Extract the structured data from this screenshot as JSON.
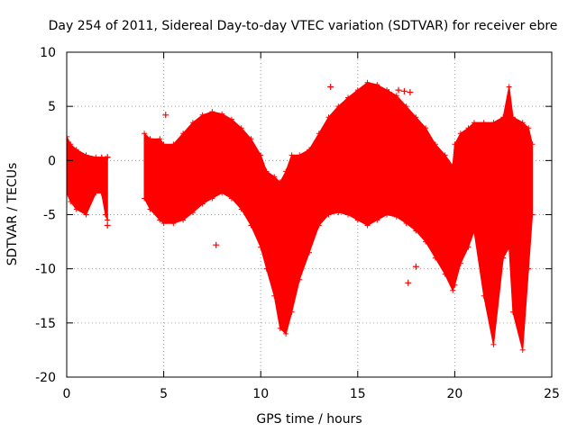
{
  "chart_data": {
    "type": "scatter",
    "title": "Day 254 of 2011, Sidereal Day-to-day VTEC variation (SDTVAR) for receiver ebre",
    "xlabel": "GPS time / hours",
    "ylabel": "SDTVAR / TECUs",
    "xlim": [
      0,
      25
    ],
    "ylim": [
      -20,
      10
    ],
    "xticks": [
      0,
      5,
      10,
      15,
      20,
      25
    ],
    "yticks": [
      -20,
      -15,
      -10,
      -5,
      0,
      5,
      10
    ],
    "grid": true,
    "series_color": "#ff0000",
    "envelope": {
      "segments": [
        {
          "x": [
            0.0,
            0.2,
            0.5,
            1.0,
            1.5,
            1.8
          ],
          "upper": [
            2.2,
            1.5,
            1.0,
            0.5,
            0.3,
            0.3
          ],
          "lower": [
            -3.0,
            -3.8,
            -4.5,
            -5.0,
            -3.0,
            -3.0
          ]
        },
        {
          "x": [
            1.8,
            2.0,
            2.1
          ],
          "upper": [
            0.3,
            0.2,
            0.3
          ],
          "lower": [
            -3.0,
            -5.0,
            -5.5
          ]
        },
        {
          "x": [
            4.0,
            4.3,
            4.8,
            5.0,
            5.5,
            6.0,
            6.5,
            7.0,
            7.5,
            8.0,
            8.5,
            9.0,
            9.5,
            10.0,
            10.3,
            10.7,
            11.0,
            11.3,
            11.6,
            12.0,
            12.5,
            13.0,
            13.5,
            14.0,
            14.5,
            15.0,
            15.5,
            16.0,
            16.5,
            17.0,
            17.5,
            18.0,
            18.5,
            19.0,
            19.5,
            19.9,
            20.0,
            20.3,
            20.7,
            21.0,
            21.5,
            22.0,
            22.5,
            22.8,
            23.0,
            23.5,
            23.8,
            24.0
          ],
          "upper": [
            2.5,
            2.0,
            2.0,
            1.5,
            1.5,
            2.5,
            3.5,
            4.2,
            4.5,
            4.3,
            3.8,
            3.0,
            2.0,
            0.5,
            -1.0,
            -1.5,
            -2.0,
            -1.0,
            0.5,
            0.5,
            1.0,
            2.5,
            4.0,
            5.0,
            5.8,
            6.5,
            7.2,
            7.0,
            6.5,
            6.0,
            5.0,
            4.0,
            3.0,
            1.5,
            0.5,
            -0.5,
            1.5,
            2.5,
            3.0,
            3.5,
            3.5,
            3.5,
            4.0,
            6.8,
            4.0,
            3.5,
            3.0,
            1.5
          ],
          "lower": [
            -3.5,
            -4.5,
            -5.5,
            -5.8,
            -5.8,
            -5.5,
            -4.8,
            -4.0,
            -3.5,
            -3.0,
            -3.5,
            -4.5,
            -6.0,
            -8.0,
            -10.0,
            -12.5,
            -15.5,
            -16.0,
            -14.0,
            -11.0,
            -8.5,
            -6.0,
            -5.0,
            -4.8,
            -5.0,
            -5.5,
            -6.0,
            -5.5,
            -5.0,
            -5.2,
            -5.8,
            -6.5,
            -7.5,
            -9.0,
            -10.5,
            -12.0,
            -11.5,
            -9.5,
            -8.0,
            -6.5,
            -12.5,
            -17.0,
            -9.0,
            -8.0,
            -14.0,
            -17.5,
            -10.0,
            -5.0
          ]
        }
      ]
    },
    "outliers": [
      {
        "x": 7.7,
        "y": -7.8
      },
      {
        "x": 13.6,
        "y": 6.8
      },
      {
        "x": 16.6,
        "y": 6.3
      },
      {
        "x": 17.1,
        "y": 6.5
      },
      {
        "x": 17.4,
        "y": 6.4
      },
      {
        "x": 17.7,
        "y": 6.3
      },
      {
        "x": 17.6,
        "y": -11.3
      },
      {
        "x": 18.0,
        "y": -9.8
      },
      {
        "x": 5.1,
        "y": 4.2
      },
      {
        "x": 2.1,
        "y": 0.3
      },
      {
        "x": 2.1,
        "y": -6.0
      }
    ]
  }
}
